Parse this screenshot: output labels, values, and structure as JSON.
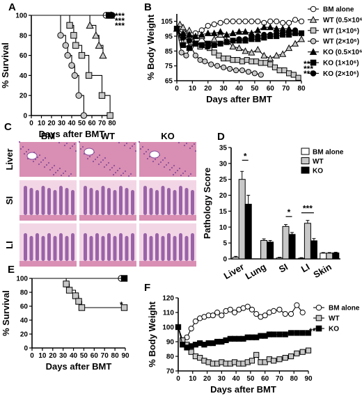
{
  "panel_letters": [
    "A",
    "B",
    "C",
    "D",
    "E",
    "F"
  ],
  "colors": {
    "white": "#ffffff",
    "gray": "#c8c8c8",
    "black": "#000000",
    "tissue": "#d98fb3",
    "tissue_dark": "#8a4f9c",
    "bg": "#f3d6e6"
  },
  "histology": {
    "columns": [
      "BM",
      "WT",
      "KO"
    ],
    "rows": [
      "Liver",
      "SI",
      "LI"
    ]
  },
  "chart_data": [
    {
      "id": "A",
      "type": "line",
      "step": true,
      "xlabel": "Days after BMT",
      "ylabel": "% Survival",
      "xlim": [
        0,
        80
      ],
      "ylim": [
        0,
        100
      ],
      "xticks": [
        "0",
        "10",
        "20",
        "30",
        "40",
        "50",
        "60",
        "70",
        "80"
      ],
      "yticks": [
        "0",
        "20",
        "40",
        "60",
        "80",
        "100"
      ],
      "series": [
        {
          "marker": "circle",
          "fill": "#ffffff",
          "x": [
            0,
            74
          ],
          "y": [
            100,
            100
          ]
        },
        {
          "marker": "triangle",
          "fill": "#c8c8c8",
          "x": [
            0,
            55,
            58,
            64,
            67,
            71
          ],
          "y": [
            100,
            100,
            90,
            80,
            70,
            60
          ]
        },
        {
          "marker": "square",
          "fill": "#c8c8c8",
          "x": [
            0,
            36,
            38,
            42,
            44,
            50,
            57,
            70,
            78
          ],
          "y": [
            100,
            100,
            90,
            80,
            70,
            60,
            40,
            20,
            0
          ]
        },
        {
          "marker": "circle",
          "fill": "#c8c8c8",
          "x": [
            0,
            27,
            29,
            34,
            36,
            40,
            43,
            47,
            52
          ],
          "y": [
            100,
            100,
            80,
            70,
            60,
            50,
            40,
            20,
            0
          ]
        },
        {
          "marker": "triangle",
          "fill": "#000000",
          "x": [
            0,
            79
          ],
          "y": [
            100,
            100
          ]
        },
        {
          "marker": "square",
          "fill": "#000000",
          "x": [
            0,
            77
          ],
          "y": [
            100,
            100
          ]
        },
        {
          "marker": "circle",
          "fill": "#000000",
          "x": [
            0,
            80
          ],
          "y": [
            100,
            100
          ]
        }
      ],
      "annotations": [
        "***",
        "***",
        "***"
      ]
    },
    {
      "id": "B",
      "type": "line",
      "xlabel": "Days after BMT",
      "ylabel": "% Body Weight",
      "xlim": [
        0,
        80
      ],
      "ylim": [
        65,
        110
      ],
      "xticks": [
        "0",
        "10",
        "20",
        "30",
        "40",
        "50",
        "60",
        "70",
        "80"
      ],
      "yticks": [
        "65",
        "75",
        "85",
        "95",
        "105"
      ],
      "series": [
        {
          "name": "BM alone",
          "marker": "circle",
          "fill": "#ffffff",
          "x": [
            0,
            4,
            8,
            12,
            16,
            20,
            24,
            28,
            32,
            36,
            40,
            44,
            48,
            52,
            56,
            60,
            64,
            68,
            72,
            76,
            80
          ],
          "y": [
            100,
            94,
            92,
            97,
            99,
            102,
            103,
            104,
            105,
            105,
            105,
            105,
            105,
            105,
            104,
            105,
            105,
            104,
            104,
            106,
            105
          ]
        },
        {
          "name": "WT (0.5×10⁶)",
          "marker": "triangle",
          "fill": "#c8c8c8",
          "x": [
            0,
            2,
            4,
            6,
            8,
            10,
            13,
            16,
            20,
            24,
            28,
            32,
            36,
            40,
            44,
            48,
            52,
            56,
            60,
            64,
            68,
            72,
            76,
            80
          ],
          "y": [
            100,
            103,
            101,
            97,
            99,
            93,
            90,
            95,
            88,
            93,
            96,
            92,
            88,
            87,
            85,
            84,
            86,
            82,
            80,
            82,
            83,
            87,
            90,
            93
          ]
        },
        {
          "name": "WT (1×10⁶)",
          "marker": "square",
          "fill": "#c8c8c8",
          "x": [
            0,
            3,
            6,
            9,
            12,
            15,
            18,
            21,
            24,
            27,
            30,
            33,
            36,
            39,
            42,
            45,
            48,
            51,
            54,
            57,
            60,
            63,
            66,
            69,
            72,
            75,
            78
          ],
          "y": [
            100,
            94,
            92,
            91,
            90,
            88,
            89,
            87,
            84,
            82,
            80,
            80,
            79,
            79,
            78,
            79,
            78,
            78,
            77,
            77,
            76,
            74,
            72,
            72,
            70,
            69,
            67
          ]
        },
        {
          "name": "WT (2×10⁶)",
          "marker": "circle",
          "fill": "#c8c8c8",
          "x": [
            0,
            3,
            6,
            9,
            12,
            15,
            18,
            22,
            26,
            30,
            34,
            38,
            42,
            46,
            50,
            54
          ],
          "y": [
            100,
            84,
            82,
            88,
            82,
            79,
            78,
            76,
            75,
            74,
            73,
            72,
            72,
            71,
            70,
            69
          ]
        },
        {
          "name": "KO (0.5×10⁶)",
          "marker": "triangle",
          "fill": "#000000",
          "x": [
            0,
            4,
            8,
            12,
            16,
            20,
            24,
            28,
            32,
            36,
            40,
            44,
            48,
            52,
            56,
            60,
            64,
            68,
            72,
            76
          ],
          "y": [
            100,
            97,
            96,
            95,
            96,
            97,
            97,
            98,
            96,
            97,
            98,
            98,
            97,
            99,
            101,
            101,
            100,
            100,
            100,
            98
          ]
        },
        {
          "name": "KO (1×10⁶)",
          "marker": "square",
          "fill": "#000000",
          "x": [
            0,
            4,
            8,
            12,
            16,
            20,
            24,
            28,
            32,
            36,
            40,
            44,
            48,
            52,
            56,
            60,
            64,
            68,
            72,
            76,
            80
          ],
          "y": [
            100,
            89,
            87,
            90,
            89,
            90,
            89,
            90,
            91,
            92,
            92,
            92,
            93,
            93,
            94,
            95,
            95,
            96,
            96,
            97,
            97
          ]
        },
        {
          "name": "KO (2×10⁶)",
          "marker": "circle",
          "fill": "#000000",
          "x": [
            0,
            4,
            8,
            12,
            16,
            20,
            24,
            28,
            32,
            36,
            40,
            44,
            48,
            52,
            56,
            60,
            64,
            68,
            72,
            76
          ],
          "y": [
            100,
            94,
            92,
            90,
            89,
            88,
            89,
            90,
            91,
            92,
            93,
            93,
            94,
            95,
            96,
            96,
            97,
            97,
            98,
            99
          ]
        }
      ],
      "annotations": [
        "***",
        "***",
        "***"
      ]
    },
    {
      "id": "D",
      "type": "bar",
      "ylabel": "Pathology Score",
      "ylim": [
        0,
        35
      ],
      "yticks": [
        "0",
        "5",
        "10",
        "15",
        "20",
        "25",
        "30",
        "35"
      ],
      "categories": [
        "Liver",
        "Lung",
        "SI",
        "LI",
        "Skin"
      ],
      "series": [
        {
          "name": "BM alone",
          "fill": "#ffffff",
          "values": [
            0.5,
            0.0,
            0.3,
            0.2,
            1.8
          ],
          "err": [
            0.3,
            0,
            0.2,
            0.2,
            0.2
          ]
        },
        {
          "name": "WT",
          "fill": "#c8c8c8",
          "values": [
            25.0,
            5.8,
            10.2,
            11.2,
            1.8
          ],
          "err": [
            2.5,
            0.5,
            0.6,
            0.9,
            0.2
          ]
        },
        {
          "name": "KO",
          "fill": "#000000",
          "values": [
            17.2,
            5.3,
            7.7,
            5.7,
            1.9
          ],
          "err": [
            2.8,
            0.5,
            0.6,
            0.7,
            0.2
          ]
        }
      ],
      "annotations": [
        "*",
        "*",
        "***"
      ]
    },
    {
      "id": "E",
      "type": "line",
      "step": true,
      "xlabel": "Days after BMT",
      "ylabel": "% Survival",
      "xlim": [
        0,
        90
      ],
      "ylim": [
        0,
        100
      ],
      "xticks": [
        "0",
        "10",
        "20",
        "30",
        "40",
        "50",
        "60",
        "70",
        "80",
        "90"
      ],
      "yticks": [
        "0",
        "20",
        "40",
        "60",
        "80",
        "100"
      ],
      "series": [
        {
          "marker": "circle",
          "fill": "#ffffff",
          "x": [
            0,
            86
          ],
          "y": [
            100,
            100
          ]
        },
        {
          "marker": "square",
          "fill": "#c8c8c8",
          "x": [
            0,
            32,
            33,
            36,
            42,
            45,
            48,
            57,
            89
          ],
          "y": [
            100,
            100,
            92,
            83,
            75,
            67,
            58,
            58,
            58
          ]
        },
        {
          "marker": "square",
          "fill": "#000000",
          "x": [
            0,
            89
          ],
          "y": [
            100,
            100
          ]
        }
      ],
      "annotations": [
        "*"
      ]
    },
    {
      "id": "F",
      "type": "line",
      "xlabel": "Days after BMT",
      "ylabel": "% Body Weight",
      "xlim": [
        0,
        90
      ],
      "ylim": [
        70,
        120
      ],
      "xticks": [
        "0",
        "10",
        "20",
        "30",
        "40",
        "50",
        "60",
        "70",
        "80",
        "90"
      ],
      "yticks": [
        "70",
        "80",
        "90",
        "100",
        "110",
        "120"
      ],
      "series": [
        {
          "name": "BM alone",
          "marker": "circle",
          "fill": "#ffffff",
          "x": [
            0,
            3,
            6,
            9,
            12,
            15,
            18,
            21,
            24,
            27,
            30,
            33,
            36,
            39,
            42,
            45,
            48,
            51,
            54,
            57,
            60,
            63,
            66,
            70,
            74,
            78,
            82,
            86
          ],
          "y": [
            100,
            91,
            93,
            99,
            104,
            106,
            107,
            108,
            108,
            110,
            108,
            111,
            112,
            110,
            112,
            113,
            114,
            112,
            109,
            107,
            108,
            110,
            111,
            112,
            109,
            109,
            115,
            110
          ]
        },
        {
          "name": "WT",
          "marker": "square",
          "fill": "#c8c8c8",
          "x": [
            0,
            3,
            6,
            9,
            12,
            15,
            18,
            21,
            24,
            27,
            30,
            33,
            36,
            39,
            42,
            45,
            48,
            51,
            54,
            57,
            60,
            63,
            66,
            70,
            74,
            78,
            82,
            86,
            90
          ],
          "y": [
            100,
            91,
            88,
            83,
            80,
            79,
            77,
            76,
            75,
            75,
            76,
            75,
            75,
            76,
            75,
            75,
            76,
            77,
            81,
            76,
            76,
            78,
            77,
            78,
            79,
            80,
            82,
            83,
            84
          ]
        },
        {
          "name": "KO",
          "marker": "square",
          "fill": "#000000",
          "x": [
            0,
            3,
            6,
            9,
            12,
            15,
            18,
            21,
            24,
            27,
            30,
            33,
            36,
            39,
            42,
            45,
            48,
            51,
            54,
            57,
            60,
            63,
            66,
            70,
            74,
            78,
            82,
            86,
            90
          ],
          "y": [
            100,
            88,
            86,
            87,
            88,
            89,
            88,
            89,
            89,
            90,
            90,
            91,
            92,
            92,
            92,
            92,
            93,
            93,
            93,
            94,
            94,
            95,
            95,
            95,
            95,
            96,
            96,
            96,
            96
          ]
        }
      ],
      "annotations": [
        "***"
      ]
    }
  ]
}
